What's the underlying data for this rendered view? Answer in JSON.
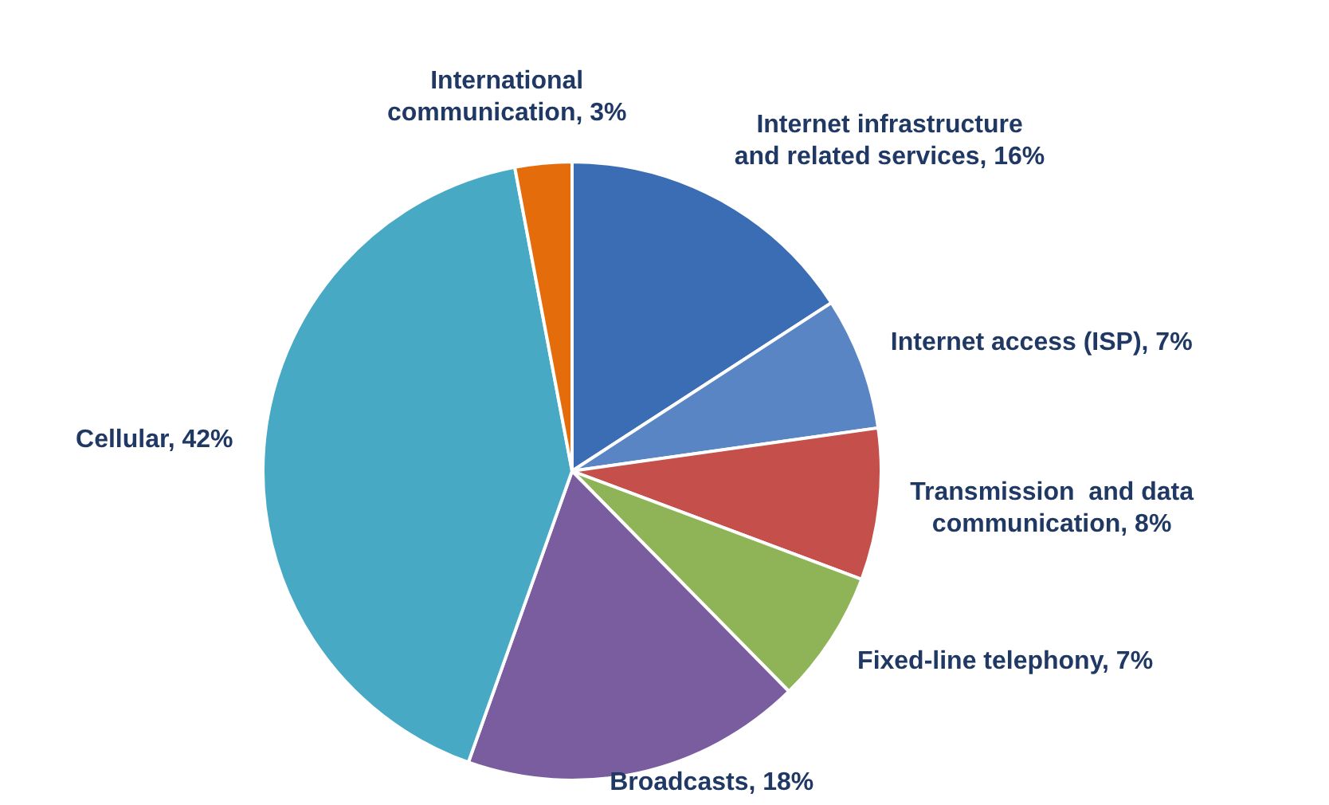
{
  "chart_data": {
    "type": "pie",
    "categories": [
      "Internet infrastructure and related services",
      "Internet access (ISP)",
      "Transmission  and data communication",
      "Fixed-line telephony",
      "Broadcasts",
      "Cellular",
      "International communication"
    ],
    "values": [
      16,
      7,
      8,
      7,
      18,
      42,
      3
    ],
    "value_labels": [
      "16%",
      "7%",
      "8%",
      "7%",
      "18%",
      "42%",
      "3%"
    ],
    "colors": [
      "#3b6db5",
      "#5a85c5",
      "#c44f4b",
      "#8fb457",
      "#7a5d9f",
      "#47a9c4",
      "#e46c0a"
    ],
    "legend": false
  }
}
